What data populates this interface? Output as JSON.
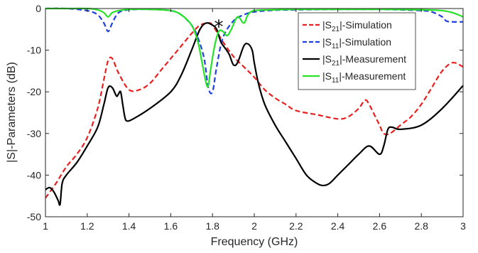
{
  "chart_data": {
    "type": "line",
    "title": "",
    "xlabel": "Frequency (GHz)",
    "ylabel": "|S|-Parameters (dB)",
    "xlim": [
      1,
      3
    ],
    "ylim": [
      -50,
      0
    ],
    "xticks": [
      1,
      1.2,
      1.4,
      1.6,
      1.8,
      2,
      2.2,
      2.4,
      2.6,
      2.8,
      3
    ],
    "xtick_labels": [
      "1",
      "1.2",
      "1.4",
      "1.6",
      "1.8",
      "2",
      "2.2",
      "2.4",
      "2.6",
      "2.8",
      "3"
    ],
    "yticks": [
      0,
      -10,
      -20,
      -30,
      -40,
      -50
    ],
    "ytick_labels": [
      "0",
      "-10",
      "-20",
      "-30",
      "-40",
      "-50"
    ],
    "grid": false,
    "legend_position": "top-right",
    "annotation": "*",
    "annotation_at": [
      1.83,
      -3.5
    ],
    "series": [
      {
        "name": "|S21|-Simulation",
        "legend_main": "|S",
        "legend_sub": "21",
        "legend_suffix": "|-Simulation",
        "color": "#e8201f",
        "dash": "dashed",
        "x": [
          1,
          1.05,
          1.1,
          1.15,
          1.2,
          1.25,
          1.28,
          1.3,
          1.32,
          1.35,
          1.4,
          1.45,
          1.5,
          1.55,
          1.6,
          1.65,
          1.7,
          1.74,
          1.78,
          1.8,
          1.85,
          1.9,
          1.95,
          2.0,
          2.05,
          2.1,
          2.15,
          2.2,
          2.3,
          2.4,
          2.45,
          2.5,
          2.53,
          2.55,
          2.58,
          2.6,
          2.62,
          2.65,
          2.7,
          2.75,
          2.8,
          2.85,
          2.9,
          2.95,
          3.0
        ],
        "y": [
          -45.5,
          -42,
          -38,
          -35,
          -31,
          -24,
          -17,
          -12.5,
          -12,
          -15.5,
          -19.5,
          -19.5,
          -18,
          -15,
          -12,
          -9,
          -6,
          -4,
          -3.5,
          -4,
          -8,
          -11.5,
          -14,
          -16.5,
          -19.5,
          -21.5,
          -23,
          -24.5,
          -25.5,
          -26.5,
          -26,
          -24,
          -22,
          -23,
          -26,
          -28,
          -30,
          -30,
          -28,
          -26,
          -23,
          -19,
          -15,
          -13,
          -14
        ]
      },
      {
        "name": "|S11|-Simulation",
        "legend_main": "|S",
        "legend_sub": "11",
        "legend_suffix": "|-Simulation",
        "color": "#1f3fe0",
        "dash": "dashed",
        "x": [
          1,
          1.1,
          1.2,
          1.25,
          1.28,
          1.3,
          1.32,
          1.35,
          1.4,
          1.5,
          1.6,
          1.65,
          1.7,
          1.73,
          1.76,
          1.78,
          1.8,
          1.82,
          1.85,
          1.9,
          1.95,
          2.0,
          2.1,
          2.2,
          2.4,
          2.6,
          2.7,
          2.8,
          2.85,
          2.9,
          2.92,
          2.95,
          3.0
        ],
        "y": [
          0,
          0,
          -0.5,
          -1.5,
          -3.5,
          -5.5,
          -3.5,
          -1,
          -0.3,
          -0.2,
          -0.5,
          -1.5,
          -4,
          -7,
          -12,
          -19,
          -20,
          -14,
          -7,
          -3,
          -1.5,
          -0.8,
          -0.4,
          -0.3,
          -0.2,
          -0.2,
          -0.3,
          -0.5,
          -0.8,
          -2,
          -3,
          -3.2,
          -3.2
        ]
      },
      {
        "name": "|S21|-Measurement",
        "legend_main": "|S",
        "legend_sub": "21",
        "legend_suffix": "|-Measurement",
        "color": "#000000",
        "dash": "solid",
        "x": [
          1,
          1.02,
          1.04,
          1.06,
          1.07,
          1.08,
          1.1,
          1.15,
          1.2,
          1.25,
          1.28,
          1.3,
          1.32,
          1.34,
          1.35,
          1.36,
          1.37,
          1.38,
          1.39,
          1.42,
          1.5,
          1.6,
          1.65,
          1.7,
          1.74,
          1.77,
          1.8,
          1.82,
          1.84,
          1.86,
          1.88,
          1.9,
          1.92,
          1.95,
          1.97,
          1.99,
          2.0,
          2.02,
          2.05,
          2.1,
          2.15,
          2.2,
          2.25,
          2.3,
          2.33,
          2.36,
          2.4,
          2.45,
          2.5,
          2.55,
          2.6,
          2.62,
          2.64,
          2.66,
          2.7,
          2.8,
          2.9,
          3.0
        ],
        "y": [
          -43.5,
          -43,
          -44,
          -46,
          -47,
          -42,
          -40,
          -37,
          -33,
          -28.5,
          -23,
          -19,
          -19,
          -21,
          -20.5,
          -20,
          -23,
          -26,
          -27,
          -26.5,
          -24,
          -20,
          -16,
          -10,
          -5,
          -3.5,
          -4,
          -5,
          -8,
          -9.5,
          -11,
          -13.5,
          -13,
          -9,
          -8.5,
          -10,
          -13,
          -18,
          -23,
          -28,
          -32,
          -36,
          -40,
          -42,
          -42.5,
          -42,
          -40,
          -37.5,
          -35,
          -33,
          -35,
          -33,
          -29,
          -28.5,
          -29,
          -28,
          -24,
          -18.5
        ]
      },
      {
        "name": "|S11|-Measurement",
        "legend_main": "|S",
        "legend_sub": "11",
        "legend_suffix": "|-Measurement",
        "color": "#27e327",
        "dash": "solid",
        "x": [
          1,
          1.1,
          1.2,
          1.25,
          1.28,
          1.3,
          1.32,
          1.35,
          1.4,
          1.5,
          1.6,
          1.65,
          1.7,
          1.73,
          1.75,
          1.77,
          1.78,
          1.79,
          1.81,
          1.83,
          1.85,
          1.87,
          1.89,
          1.92,
          1.95,
          1.97,
          2.0,
          2.1,
          2.2,
          2.4,
          2.6,
          2.8,
          2.9,
          2.95,
          3.0
        ],
        "y": [
          0,
          0,
          0,
          -0.3,
          -1,
          -2,
          -1,
          -0.5,
          -0.2,
          -0.2,
          -0.5,
          -1.5,
          -4,
          -8,
          -13,
          -18,
          -18.5,
          -15,
          -9,
          -5.5,
          -5.5,
          -6.5,
          -5,
          -2,
          -3.5,
          -1.5,
          -0.5,
          -0.3,
          -0.2,
          -0.2,
          -0.2,
          -0.3,
          -0.5,
          -1,
          -2
        ]
      }
    ]
  }
}
